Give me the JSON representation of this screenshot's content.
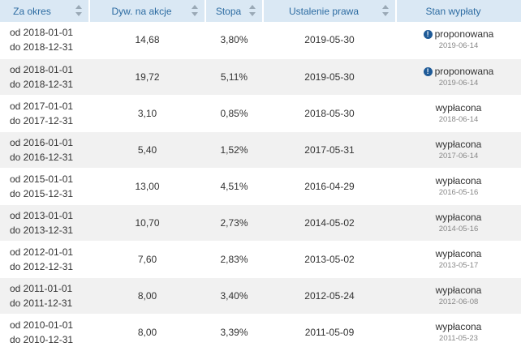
{
  "headers": {
    "period": "Za okres",
    "dividend": "Dyw. na akcje",
    "rate": "Stopa",
    "record_date": "Ustalenie prawa",
    "status": "Stan wypłaty"
  },
  "rows": [
    {
      "from": "od 2018-01-01",
      "to": "do 2018-12-31",
      "dividend": "14,68",
      "rate": "3,80%",
      "record_date": "2019-05-30",
      "status": "proponowana",
      "pay_date": "2019-06-14",
      "alert": true
    },
    {
      "from": "od 2018-01-01",
      "to": "do 2018-12-31",
      "dividend": "19,72",
      "rate": "5,11%",
      "record_date": "2019-05-30",
      "status": "proponowana",
      "pay_date": "2019-06-14",
      "alert": true
    },
    {
      "from": "od 2017-01-01",
      "to": "do 2017-12-31",
      "dividend": "3,10",
      "rate": "0,85%",
      "record_date": "2018-05-30",
      "status": "wypłacona",
      "pay_date": "2018-06-14",
      "alert": false
    },
    {
      "from": "od 2016-01-01",
      "to": "do 2016-12-31",
      "dividend": "5,40",
      "rate": "1,52%",
      "record_date": "2017-05-31",
      "status": "wypłacona",
      "pay_date": "2017-06-14",
      "alert": false
    },
    {
      "from": "od 2015-01-01",
      "to": "do 2015-12-31",
      "dividend": "13,00",
      "rate": "4,51%",
      "record_date": "2016-04-29",
      "status": "wypłacona",
      "pay_date": "2016-05-16",
      "alert": false
    },
    {
      "from": "od 2013-01-01",
      "to": "do 2013-12-31",
      "dividend": "10,70",
      "rate": "2,73%",
      "record_date": "2014-05-02",
      "status": "wypłacona",
      "pay_date": "2014-05-16",
      "alert": false
    },
    {
      "from": "od 2012-01-01",
      "to": "do 2012-12-31",
      "dividend": "7,60",
      "rate": "2,83%",
      "record_date": "2013-05-02",
      "status": "wypłacona",
      "pay_date": "2013-05-17",
      "alert": false
    },
    {
      "from": "od 2011-01-01",
      "to": "do 2011-12-31",
      "dividend": "8,00",
      "rate": "3,40%",
      "record_date": "2012-05-24",
      "status": "wypłacona",
      "pay_date": "2012-06-08",
      "alert": false
    },
    {
      "from": "od 2010-01-01",
      "to": "do 2010-12-31",
      "dividend": "8,00",
      "rate": "3,39%",
      "record_date": "2011-05-09",
      "status": "wypłacona",
      "pay_date": "2011-05-23",
      "alert": false
    }
  ],
  "icons": {
    "sort": "sort-icon",
    "alert": "exclamation-circle-icon",
    "alert_glyph": "!"
  },
  "colors": {
    "header_bg": "#dae8f4",
    "header_text": "#2d6ca2",
    "row_alt_bg": "#f1f1f1",
    "alert_icon": "#1e5a97"
  }
}
